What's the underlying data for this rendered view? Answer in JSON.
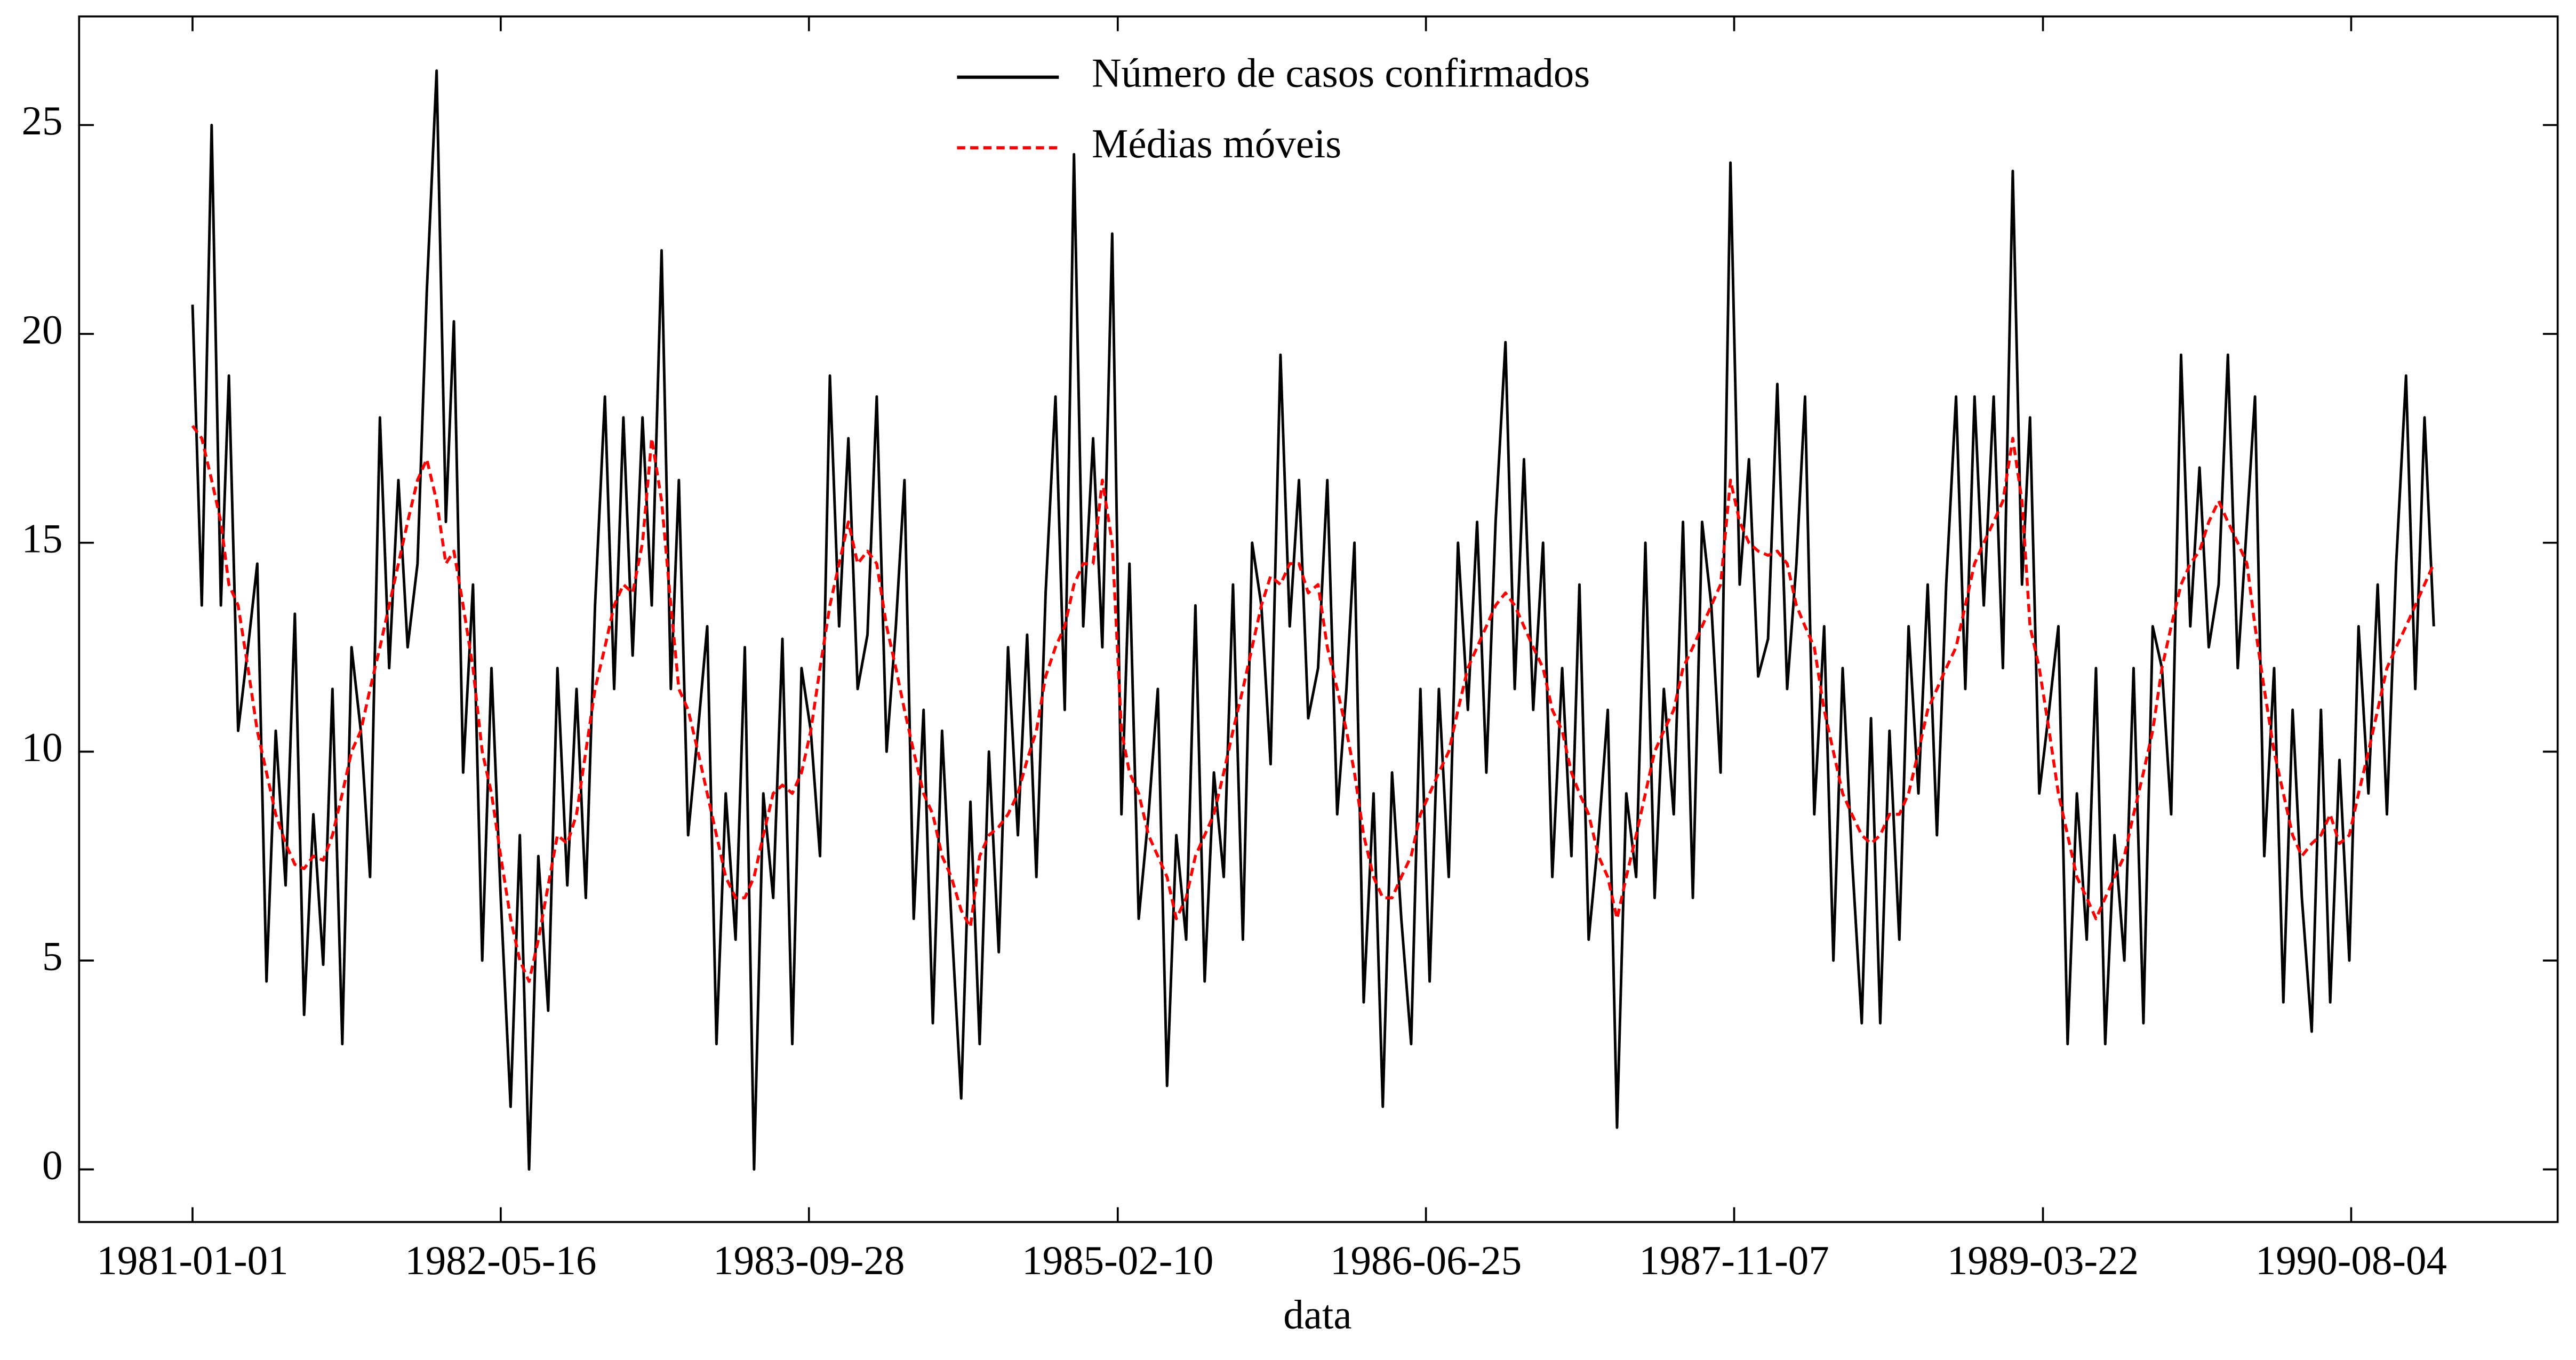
{
  "chart_data": {
    "type": "line",
    "xlabel": "data",
    "legend": "upper center",
    "x": [
      "1981-01-01",
      "1981-01-16",
      "1981-02-01",
      "1981-02-16",
      "1981-03-01",
      "1981-03-16",
      "1981-04-01",
      "1981-04-16",
      "1981-05-01",
      "1981-05-16",
      "1981-06-01",
      "1981-06-16",
      "1981-07-01",
      "1981-07-16",
      "1981-08-01",
      "1981-08-16",
      "1981-09-01",
      "1981-09-16",
      "1981-10-01",
      "1981-10-16",
      "1981-11-01",
      "1981-11-16",
      "1981-12-01",
      "1981-12-16",
      "1982-01-01",
      "1982-01-16",
      "1982-02-01",
      "1982-02-16",
      "1982-03-01",
      "1982-03-16",
      "1982-04-01",
      "1982-04-16",
      "1982-05-01",
      "1982-05-16",
      "1982-06-01",
      "1982-06-16",
      "1982-07-01",
      "1982-07-16",
      "1982-08-01",
      "1982-08-16",
      "1982-09-01",
      "1982-09-16",
      "1982-10-01",
      "1982-10-16",
      "1982-11-01",
      "1982-11-16",
      "1982-12-01",
      "1982-12-16",
      "1983-01-01",
      "1983-01-16",
      "1983-02-01",
      "1983-02-16",
      "1983-03-01",
      "1983-03-16",
      "1983-04-01",
      "1983-04-16",
      "1983-05-01",
      "1983-05-16",
      "1983-06-01",
      "1983-06-16",
      "1983-07-01",
      "1983-07-16",
      "1983-08-01",
      "1983-08-16",
      "1983-09-01",
      "1983-09-16",
      "1983-10-01",
      "1983-10-16",
      "1983-11-01",
      "1983-11-16",
      "1983-12-01",
      "1983-12-16",
      "1984-01-01",
      "1984-01-16",
      "1984-02-01",
      "1984-02-16",
      "1984-03-01",
      "1984-03-16",
      "1984-04-01",
      "1984-04-16",
      "1984-05-01",
      "1984-05-16",
      "1984-06-01",
      "1984-06-16",
      "1984-07-01",
      "1984-07-16",
      "1984-08-01",
      "1984-08-16",
      "1984-09-01",
      "1984-09-16",
      "1984-10-01",
      "1984-10-16",
      "1984-11-01",
      "1984-11-16",
      "1984-12-01",
      "1984-12-16",
      "1985-01-01",
      "1985-01-16",
      "1985-02-01",
      "1985-02-16",
      "1985-03-01",
      "1985-03-16",
      "1985-04-01",
      "1985-04-16",
      "1985-05-01",
      "1985-05-16",
      "1985-06-01",
      "1985-06-16",
      "1985-07-01",
      "1985-07-16",
      "1985-08-01",
      "1985-08-16",
      "1985-09-01",
      "1985-09-16",
      "1985-10-01",
      "1985-10-16",
      "1985-11-01",
      "1985-11-16",
      "1985-12-01",
      "1985-12-16",
      "1986-01-01",
      "1986-01-16",
      "1986-02-01",
      "1986-02-16",
      "1986-03-01",
      "1986-03-16",
      "1986-04-01",
      "1986-04-16",
      "1986-05-01",
      "1986-05-16",
      "1986-06-01",
      "1986-06-16",
      "1986-07-01",
      "1986-07-16",
      "1986-08-01",
      "1986-08-16",
      "1986-09-01",
      "1986-09-16",
      "1986-10-01",
      "1986-10-16",
      "1986-11-01",
      "1986-11-16",
      "1986-12-01",
      "1986-12-16",
      "1987-01-01",
      "1987-01-16",
      "1987-02-01",
      "1987-02-16",
      "1987-03-01",
      "1987-03-16",
      "1987-04-01",
      "1987-04-16",
      "1987-05-01",
      "1987-05-16",
      "1987-06-01",
      "1987-06-16",
      "1987-07-01",
      "1987-07-16",
      "1987-08-01",
      "1987-08-16",
      "1987-09-01",
      "1987-09-16",
      "1987-10-01",
      "1987-10-16",
      "1987-11-01",
      "1987-11-16",
      "1987-12-01",
      "1987-12-16",
      "1988-01-01",
      "1988-01-16",
      "1988-02-01",
      "1988-02-16",
      "1988-03-01",
      "1988-03-16",
      "1988-04-01",
      "1988-04-16",
      "1988-05-01",
      "1988-05-16",
      "1988-06-01",
      "1988-06-16",
      "1988-07-01",
      "1988-07-16",
      "1988-08-01",
      "1988-08-16",
      "1988-09-01",
      "1988-09-16",
      "1988-10-01",
      "1988-10-16",
      "1988-11-01",
      "1988-11-16",
      "1988-12-01",
      "1988-12-16",
      "1989-01-01",
      "1989-01-16",
      "1989-02-01",
      "1989-02-16",
      "1989-03-01",
      "1989-03-16",
      "1989-04-01",
      "1989-04-16",
      "1989-05-01",
      "1989-05-16",
      "1989-06-01",
      "1989-06-16",
      "1989-07-01",
      "1989-07-16",
      "1989-08-01",
      "1989-08-16",
      "1989-09-01",
      "1989-09-16",
      "1989-10-01",
      "1989-10-16",
      "1989-11-01",
      "1989-11-16",
      "1989-12-01",
      "1989-12-16",
      "1990-01-01",
      "1990-01-16",
      "1990-02-01",
      "1990-02-16",
      "1990-03-01",
      "1990-03-16",
      "1990-04-01",
      "1990-04-16",
      "1990-05-01",
      "1990-05-16",
      "1990-06-01",
      "1990-06-16",
      "1990-07-01",
      "1990-07-16",
      "1990-08-01",
      "1990-08-16",
      "1990-09-01",
      "1990-09-16",
      "1990-10-01",
      "1990-10-16",
      "1990-11-01",
      "1990-11-16",
      "1990-12-01",
      "1990-12-16"
    ],
    "series": [
      {
        "name": "Número de casos confirmados",
        "color": "#000000",
        "dash": false,
        "values": [
          20.7,
          13.5,
          25.0,
          13.5,
          19.0,
          10.5,
          12.5,
          14.5,
          4.5,
          10.5,
          6.8,
          13.3,
          3.7,
          8.5,
          4.9,
          11.5,
          3.0,
          12.5,
          10.5,
          7.0,
          18.0,
          12.0,
          16.5,
          12.5,
          14.5,
          21.0,
          26.3,
          15.5,
          20.3,
          9.5,
          14.0,
          5.0,
          12.0,
          6.5,
          1.5,
          8.0,
          0.0,
          7.5,
          3.8,
          12.0,
          6.8,
          11.5,
          6.5,
          13.5,
          18.5,
          11.5,
          18.0,
          12.3,
          18.0,
          13.5,
          22.0,
          11.5,
          16.5,
          8.0,
          10.5,
          13.0,
          3.0,
          9.0,
          5.5,
          12.5,
          0.0,
          9.0,
          6.5,
          12.7,
          3.0,
          12.0,
          10.5,
          7.5,
          19.0,
          13.0,
          17.5,
          11.5,
          12.8,
          18.5,
          10.0,
          13.0,
          16.5,
          6.0,
          11.0,
          3.5,
          10.5,
          6.0,
          1.7,
          8.8,
          3.0,
          10.0,
          5.2,
          12.5,
          8.0,
          12.8,
          7.0,
          13.8,
          18.5,
          11.0,
          24.3,
          13.0,
          17.5,
          12.5,
          22.4,
          8.5,
          14.5,
          6.0,
          8.5,
          11.5,
          2.0,
          8.0,
          5.5,
          13.5,
          4.5,
          9.5,
          7.0,
          14.0,
          5.5,
          15.0,
          13.5,
          9.7,
          19.5,
          13.0,
          16.5,
          10.8,
          12.0,
          16.5,
          8.5,
          11.5,
          15.0,
          4.0,
          9.0,
          1.5,
          9.5,
          6.0,
          3.0,
          11.5,
          4.5,
          11.5,
          7.0,
          15.0,
          11.0,
          15.5,
          9.5,
          15.5,
          19.8,
          11.5,
          17.0,
          11.0,
          15.0,
          7.0,
          12.0,
          7.5,
          14.0,
          5.5,
          8.0,
          11.0,
          1.0,
          9.0,
          7.0,
          15.0,
          6.5,
          11.5,
          8.5,
          15.5,
          6.5,
          15.5,
          13.5,
          9.5,
          24.1,
          14.0,
          17.0,
          11.8,
          12.7,
          18.8,
          11.5,
          14.5,
          18.5,
          8.5,
          13.0,
          5.0,
          12.0,
          7.5,
          3.5,
          10.8,
          3.5,
          10.5,
          5.5,
          13.0,
          9.0,
          14.0,
          8.0,
          14.0,
          18.5,
          11.5,
          18.5,
          13.5,
          18.5,
          12.0,
          23.9,
          14.0,
          18.0,
          9.0,
          11.0,
          13.0,
          3.0,
          9.0,
          5.5,
          12.0,
          3.0,
          8.0,
          5.0,
          12.0,
          3.5,
          13.0,
          12.0,
          8.5,
          19.5,
          13.0,
          16.8,
          12.5,
          14.0,
          19.5,
          12.0,
          15.5,
          18.5,
          7.5,
          12.0,
          4.0,
          11.0,
          6.5,
          3.3,
          11.0,
          4.0,
          9.8,
          5.0,
          13.0,
          9.0,
          14.0,
          8.5,
          14.5,
          19.0,
          11.5,
          18.0,
          13.0
        ]
      },
      {
        "name": "Médias móveis",
        "color": "#ff0000",
        "dash": true,
        "values": [
          17.8,
          17.5,
          16.5,
          15.5,
          14.0,
          13.5,
          12.0,
          10.5,
          9.5,
          8.5,
          7.8,
          7.3,
          7.2,
          7.5,
          7.4,
          8.0,
          9.0,
          10.0,
          10.5,
          11.5,
          12.5,
          13.5,
          14.5,
          15.5,
          16.5,
          17.0,
          16.0,
          14.5,
          14.8,
          13.5,
          12.0,
          10.0,
          9.0,
          7.5,
          6.0,
          5.0,
          4.5,
          5.5,
          6.8,
          8.0,
          7.8,
          8.5,
          10.0,
          11.5,
          12.5,
          13.5,
          14.0,
          13.8,
          15.0,
          17.5,
          16.0,
          13.5,
          11.5,
          11.0,
          10.0,
          9.0,
          8.0,
          7.0,
          6.5,
          6.5,
          7.0,
          8.0,
          9.0,
          9.2,
          9.0,
          9.5,
          10.5,
          12.0,
          13.5,
          14.5,
          15.5,
          14.5,
          14.8,
          14.5,
          13.0,
          12.0,
          11.0,
          10.0,
          9.0,
          8.5,
          7.5,
          7.0,
          6.2,
          5.8,
          7.5,
          8.0,
          8.2,
          8.5,
          9.0,
          9.8,
          10.5,
          11.8,
          12.5,
          13.0,
          14.0,
          14.5,
          14.5,
          16.5,
          15.0,
          10.5,
          9.5,
          9.0,
          8.0,
          7.5,
          7.0,
          6.0,
          6.5,
          7.5,
          8.0,
          8.5,
          9.5,
          10.5,
          11.5,
          12.5,
          13.5,
          14.2,
          14.0,
          14.5,
          14.5,
          13.8,
          14.0,
          12.5,
          11.5,
          10.5,
          9.5,
          8.0,
          7.0,
          6.5,
          6.5,
          7.0,
          7.5,
          8.5,
          9.0,
          9.5,
          10.0,
          11.0,
          12.0,
          12.5,
          13.0,
          13.5,
          13.8,
          13.5,
          13.0,
          12.5,
          12.0,
          11.0,
          10.5,
          9.5,
          9.0,
          8.5,
          7.5,
          7.0,
          6.0,
          7.0,
          8.0,
          9.0,
          10.0,
          10.5,
          11.0,
          12.0,
          12.5,
          13.0,
          13.5,
          14.0,
          16.5,
          15.5,
          15.0,
          14.8,
          14.7,
          14.8,
          14.5,
          13.5,
          13.0,
          12.5,
          11.0,
          10.0,
          9.0,
          8.5,
          8.0,
          7.8,
          8.0,
          8.5,
          8.5,
          9.0,
          10.0,
          11.0,
          11.5,
          12.0,
          12.5,
          13.5,
          14.5,
          15.0,
          15.5,
          16.0,
          17.5,
          16.0,
          13.0,
          12.0,
          10.5,
          9.0,
          8.0,
          7.0,
          6.5,
          6.0,
          6.5,
          7.0,
          7.5,
          8.5,
          9.5,
          10.5,
          12.0,
          13.0,
          14.0,
          14.5,
          14.8,
          15.5,
          16.0,
          15.5,
          15.0,
          14.5,
          13.0,
          11.5,
          10.0,
          9.0,
          8.0,
          7.5,
          7.8,
          8.0,
          8.5,
          7.8,
          8.0,
          9.0,
          10.0,
          11.0,
          12.0,
          12.5,
          13.0,
          13.5,
          14.0,
          14.5
        ]
      }
    ],
    "xlim": [
      "1980-07-01",
      "1991-07-05"
    ],
    "xticks": [
      "1981-01-01",
      "1982-05-16",
      "1983-09-28",
      "1985-02-10",
      "1986-06-25",
      "1987-11-07",
      "1989-03-22",
      "1990-08-04"
    ],
    "ylim": [
      -1.26,
      27.6
    ],
    "yticks": [
      0,
      5,
      10,
      15,
      20,
      25
    ],
    "grid": false
  }
}
